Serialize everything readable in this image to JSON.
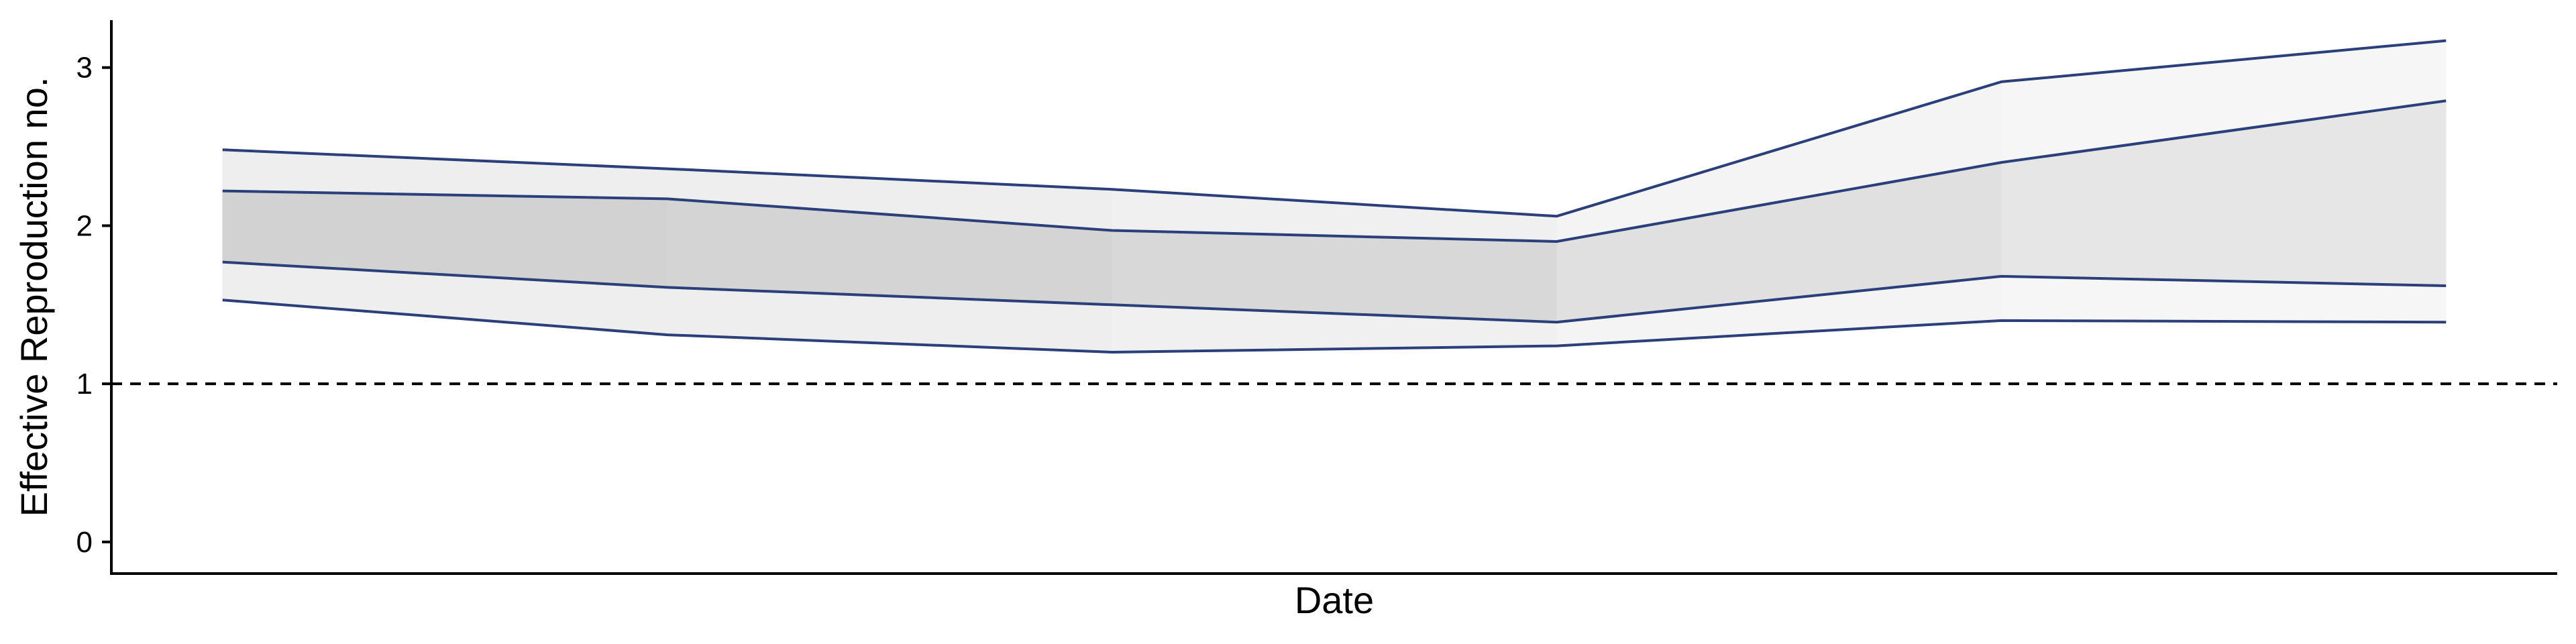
{
  "chart_data": {
    "type": "area",
    "title": "",
    "xlabel": "Date",
    "ylabel": "Effective Reproduction no.",
    "x": [
      1,
      2,
      3,
      4,
      5,
      6
    ],
    "ylim": [
      -0.2,
      3.3
    ],
    "yticks": [
      0,
      1,
      2,
      3
    ],
    "x_tick_labels_shown": false,
    "grid": false,
    "legend": "none",
    "reference_line": {
      "y": 1,
      "style": "dashed",
      "color": "#000000"
    },
    "line_color": "#2b3f7a",
    "series": [
      {
        "lower": [
          1.53,
          1.31,
          1.2,
          1.24,
          1.4,
          1.39
        ],
        "upper": [
          2.48,
          2.36,
          2.23,
          2.06,
          2.91,
          3.17
        ],
        "colors": [
          "#eeeeee",
          "#eeeeee",
          "#f0f0f0",
          "#f4f4f4",
          "#f6f6f6",
          "#f8f8f8"
        ]
      },
      {
        "lower": [
          1.77,
          1.61,
          1.5,
          1.39,
          1.68,
          1.62
        ],
        "upper": [
          2.22,
          2.17,
          1.97,
          1.9,
          2.4,
          2.79
        ],
        "colors": [
          "#d2d2d2",
          "#d4d4d4",
          "#d8d8d8",
          "#e0e0e0",
          "#e6e6e6",
          "#ececec"
        ]
      }
    ]
  }
}
